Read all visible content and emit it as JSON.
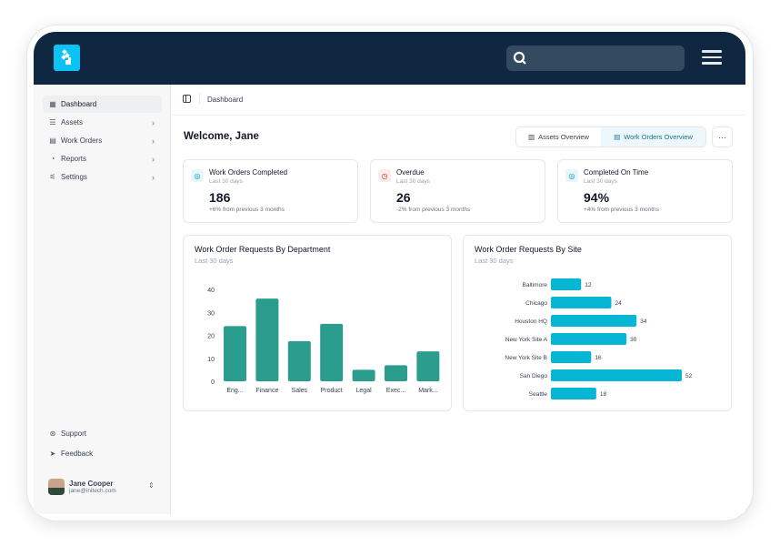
{
  "header": {
    "search_placeholder": "",
    "logo": "logo-icon"
  },
  "sidebar": {
    "items": [
      {
        "label": "Dashboard",
        "icon": "grid-icon",
        "active": true
      },
      {
        "label": "Assets",
        "icon": "list-icon"
      },
      {
        "label": "Work Orders",
        "icon": "clipboard-icon"
      },
      {
        "label": "Reports",
        "icon": "pie-chart-icon"
      },
      {
        "label": "Settings",
        "icon": "sliders-icon"
      }
    ],
    "footer": [
      {
        "label": "Support",
        "icon": "lifebuoy-icon"
      },
      {
        "label": "Feedback",
        "icon": "send-icon"
      }
    ],
    "user": {
      "name": "Jane Cooper",
      "email": "jane@initech.com"
    }
  },
  "breadcrumb": "Dashboard",
  "welcome": "Welcome, Jane",
  "tabs": [
    {
      "label": "Assets Overview",
      "active": false
    },
    {
      "label": "Work Orders Overview",
      "active": true
    }
  ],
  "more_label": "···",
  "kpis": [
    {
      "title": "Work Orders Completed",
      "subtitle": "Last 30 days",
      "value": "186",
      "change": "+6% from previous 3 months",
      "color": "#0891b2"
    },
    {
      "title": "Overdue",
      "subtitle": "Last 30 days",
      "value": "26",
      "change": "-2% from previous 3 months",
      "color": "#dc2626"
    },
    {
      "title": "Completed On Time",
      "subtitle": "Last 30 days",
      "value": "94%",
      "change": "+4% from previous 3 months",
      "color": "#0891b2"
    }
  ],
  "chart_data": [
    {
      "type": "bar",
      "title": "Work Order Requests By Department",
      "subtitle": "Last 30 days",
      "categories": [
        "Eng...",
        "Finance",
        "Sales",
        "Product",
        "Legal",
        "Exec...",
        "Mark..."
      ],
      "values": [
        24,
        36,
        17.5,
        25,
        5,
        7,
        13
      ],
      "ylim": [
        0,
        40
      ],
      "yticks": [
        "0",
        "10",
        "20",
        "30",
        "40"
      ],
      "color": "#2a9d8f",
      "grid": false
    },
    {
      "type": "bar",
      "orientation": "horizontal",
      "title": "Work Order Requests By Site",
      "subtitle": "Last 30 days",
      "categories": [
        "Baltimore",
        "Chicago",
        "Houston HQ",
        "New York Site A",
        "New York Site B",
        "San Diego",
        "Seattle"
      ],
      "values": [
        12,
        24,
        34,
        30,
        16,
        52,
        18
      ],
      "color": "#06b6d4",
      "data_labels": true
    }
  ]
}
